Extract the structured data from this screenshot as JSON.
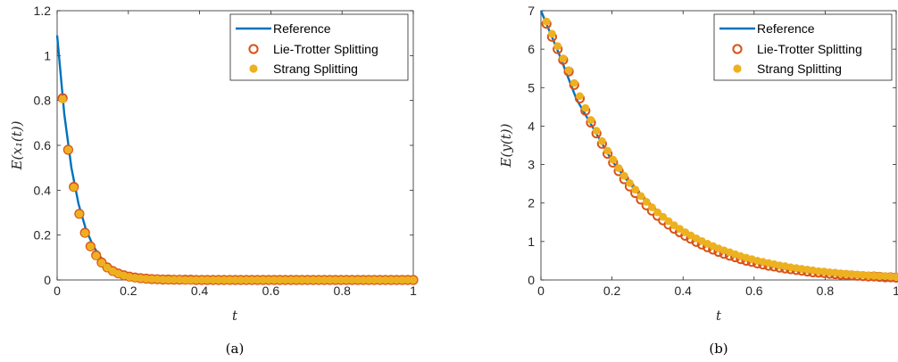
{
  "colors": {
    "reference": "#0072BD",
    "lie": "#D95319",
    "strang": "#EDB120"
  },
  "chart_data": [
    {
      "type": "line",
      "xlabel": "t",
      "ylabel": "E(x₁(t))",
      "xlim": [
        0,
        1
      ],
      "ylim": [
        0,
        1.2
      ],
      "xticks": [
        "0",
        "0.2",
        "0.4",
        "0.6",
        "0.8",
        "1"
      ],
      "yticks": [
        "0",
        "0.2",
        "0.4",
        "0.6",
        "0.8",
        "1",
        "1.2"
      ],
      "legend_position": "top-right",
      "caption": "(a)",
      "series": [
        {
          "name": "Reference",
          "style": "line",
          "x": [
            0,
            0.02,
            0.04,
            0.06,
            0.08,
            0.1,
            0.12,
            0.14,
            0.16,
            0.18,
            0.2,
            0.25,
            0.3,
            0.4,
            0.5,
            0.6,
            0.7,
            0.8,
            0.9,
            1.0
          ],
          "y": [
            1.09,
            0.74,
            0.5,
            0.34,
            0.23,
            0.155,
            0.105,
            0.07,
            0.047,
            0.032,
            0.022,
            0.009,
            0.004,
            0.001,
            0.0,
            0.0,
            0.0,
            0.0,
            0.0,
            0.0
          ]
        },
        {
          "name": "Lie-Trotter Splitting",
          "style": "circle",
          "x": [
            0.0156,
            0.0312,
            0.0469,
            0.0625,
            0.0781,
            0.0938,
            0.1094,
            0.125,
            0.1406,
            0.1563,
            0.1719,
            0.1875,
            0.2031,
            0.2188,
            0.2344,
            0.25,
            0.2656,
            0.2813,
            0.2969,
            0.3125,
            0.3281,
            0.3438,
            0.3594,
            0.375,
            0.3906,
            0.4063,
            0.4219,
            0.4375,
            0.4531,
            0.4688,
            0.4844,
            0.5,
            0.5156,
            0.5313,
            0.5469,
            0.5625,
            0.5781,
            0.5938,
            0.6094,
            0.625,
            0.6406,
            0.6563,
            0.6719,
            0.6875,
            0.7031,
            0.7188,
            0.7344,
            0.75,
            0.7656,
            0.7813,
            0.7969,
            0.8125,
            0.8281,
            0.8438,
            0.8594,
            0.875,
            0.8906,
            0.9063,
            0.9219,
            0.9375,
            0.9531,
            0.9688,
            0.9844,
            1.0
          ],
          "y": [
            0.81,
            0.58,
            0.415,
            0.295,
            0.21,
            0.15,
            0.11,
            0.078,
            0.056,
            0.04,
            0.029,
            0.021,
            0.015,
            0.011,
            0.008,
            0.006,
            0.004,
            0.003,
            0.002,
            0.002,
            0.001,
            0.001,
            0.001,
            0.001,
            0.0,
            0.0,
            0.0,
            0.0,
            0.0,
            0.0,
            0.0,
            0.0,
            0.0,
            0.0,
            0.0,
            0.0,
            0.0,
            0.0,
            0.0,
            0.0,
            0.0,
            0.0,
            0.0,
            0.0,
            0.0,
            0.0,
            0.0,
            0.0,
            0.0,
            0.0,
            0.0,
            0.0,
            0.0,
            0.0,
            0.0,
            0.0,
            0.0,
            0.0,
            0.0,
            0.0,
            0.0,
            0.0,
            0.0,
            0.0
          ]
        },
        {
          "name": "Strang Splitting",
          "style": "dot",
          "x": [
            0.0156,
            0.0312,
            0.0469,
            0.0625,
            0.0781,
            0.0938,
            0.1094,
            0.125,
            0.1406,
            0.1563,
            0.1719,
            0.1875,
            0.2031,
            0.2188,
            0.2344,
            0.25,
            0.2656,
            0.2813,
            0.2969,
            0.3125,
            0.3281,
            0.3438,
            0.3594,
            0.375,
            0.3906,
            0.4063,
            0.4219,
            0.4375,
            0.4531,
            0.4688,
            0.4844,
            0.5,
            0.5156,
            0.5313,
            0.5469,
            0.5625,
            0.5781,
            0.5938,
            0.6094,
            0.625,
            0.6406,
            0.6563,
            0.6719,
            0.6875,
            0.7031,
            0.7188,
            0.7344,
            0.75,
            0.7656,
            0.7813,
            0.7969,
            0.8125,
            0.8281,
            0.8438,
            0.8594,
            0.875,
            0.8906,
            0.9063,
            0.9219,
            0.9375,
            0.9531,
            0.9688,
            0.9844,
            1.0
          ],
          "y": [
            0.805,
            0.58,
            0.413,
            0.294,
            0.209,
            0.149,
            0.108,
            0.077,
            0.055,
            0.039,
            0.028,
            0.02,
            0.014,
            0.01,
            0.007,
            0.005,
            0.004,
            0.003,
            0.002,
            0.001,
            0.001,
            0.001,
            0.0,
            0.0,
            0.0,
            0.0,
            0.0,
            0.0,
            0.0,
            0.0,
            0.0,
            0.0,
            0.0,
            0.0,
            0.0,
            0.0,
            0.0,
            0.0,
            0.0,
            0.0,
            0.0,
            0.0,
            0.0,
            0.0,
            0.0,
            0.0,
            0.0,
            0.0,
            0.0,
            0.0,
            0.0,
            0.0,
            0.0,
            0.0,
            0.0,
            0.0,
            0.0,
            0.0,
            0.0,
            0.0,
            0.0,
            0.0,
            0.0,
            0.0
          ]
        }
      ]
    },
    {
      "type": "line",
      "xlabel": "t",
      "ylabel": "E(y(t))",
      "xlim": [
        0,
        1
      ],
      "ylim": [
        0,
        7
      ],
      "xticks": [
        "0",
        "0.2",
        "0.4",
        "0.6",
        "0.8",
        "1"
      ],
      "yticks": [
        "0",
        "1",
        "2",
        "3",
        "4",
        "5",
        "6",
        "7"
      ],
      "legend_position": "top-right",
      "caption": "(b)",
      "series": [
        {
          "name": "Reference",
          "style": "line",
          "x": [
            0,
            0.05,
            0.1,
            0.15,
            0.2,
            0.25,
            0.3,
            0.35,
            0.4,
            0.45,
            0.5,
            0.55,
            0.6,
            0.65,
            0.7,
            0.75,
            0.8,
            0.85,
            0.9,
            0.95,
            1.0
          ],
          "y": [
            7.0,
            5.9,
            4.7,
            3.9,
            3.1,
            2.5,
            2.0,
            1.6,
            1.25,
            0.98,
            0.76,
            0.6,
            0.46,
            0.36,
            0.28,
            0.21,
            0.16,
            0.12,
            0.09,
            0.06,
            0.04
          ]
        },
        {
          "name": "Lie-Trotter Splitting",
          "style": "circle",
          "x": [
            0.0156,
            0.0312,
            0.0469,
            0.0625,
            0.0781,
            0.0938,
            0.1094,
            0.125,
            0.1406,
            0.1563,
            0.1719,
            0.1875,
            0.2031,
            0.2188,
            0.2344,
            0.25,
            0.2656,
            0.2813,
            0.2969,
            0.3125,
            0.3281,
            0.3438,
            0.3594,
            0.375,
            0.3906,
            0.4063,
            0.4219,
            0.4375,
            0.4531,
            0.4688,
            0.4844,
            0.5,
            0.5156,
            0.5313,
            0.5469,
            0.5625,
            0.5781,
            0.5938,
            0.6094,
            0.625,
            0.6406,
            0.6563,
            0.6719,
            0.6875,
            0.7031,
            0.7188,
            0.7344,
            0.75,
            0.7656,
            0.7813,
            0.7969,
            0.8125,
            0.8281,
            0.8438,
            0.8594,
            0.875,
            0.8906,
            0.9063,
            0.9219,
            0.9375,
            0.9531,
            0.9688,
            0.9844,
            1.0
          ],
          "y": [
            6.66,
            6.32,
            6.0,
            5.72,
            5.42,
            5.07,
            4.72,
            4.4,
            4.09,
            3.81,
            3.54,
            3.28,
            3.05,
            2.83,
            2.62,
            2.43,
            2.26,
            2.09,
            1.94,
            1.8,
            1.67,
            1.55,
            1.44,
            1.33,
            1.24,
            1.15,
            1.07,
            0.99,
            0.92,
            0.85,
            0.79,
            0.73,
            0.68,
            0.63,
            0.59,
            0.54,
            0.5,
            0.47,
            0.43,
            0.4,
            0.37,
            0.35,
            0.32,
            0.3,
            0.28,
            0.26,
            0.24,
            0.22,
            0.2,
            0.19,
            0.18,
            0.16,
            0.15,
            0.14,
            0.13,
            0.12,
            0.11,
            0.1,
            0.09,
            0.09,
            0.08,
            0.07,
            0.07,
            0.06
          ]
        },
        {
          "name": "Strang Splitting",
          "style": "dot",
          "x": [
            0.0156,
            0.0312,
            0.0469,
            0.0625,
            0.0781,
            0.0938,
            0.1094,
            0.125,
            0.1406,
            0.1563,
            0.1719,
            0.1875,
            0.2031,
            0.2188,
            0.2344,
            0.25,
            0.2656,
            0.2813,
            0.2969,
            0.3125,
            0.3281,
            0.3438,
            0.3594,
            0.375,
            0.3906,
            0.4063,
            0.4219,
            0.4375,
            0.4531,
            0.4688,
            0.4844,
            0.5,
            0.5156,
            0.5313,
            0.5469,
            0.5625,
            0.5781,
            0.5938,
            0.6094,
            0.625,
            0.6406,
            0.6563,
            0.6719,
            0.6875,
            0.7031,
            0.7188,
            0.7344,
            0.75,
            0.7656,
            0.7813,
            0.7969,
            0.8125,
            0.8281,
            0.8438,
            0.8594,
            0.875,
            0.8906,
            0.9063,
            0.9219,
            0.9375,
            0.9531,
            0.9688,
            0.9844,
            1.0
          ],
          "y": [
            6.72,
            6.4,
            6.08,
            5.76,
            5.45,
            5.12,
            4.78,
            4.47,
            4.16,
            3.88,
            3.61,
            3.36,
            3.13,
            2.91,
            2.71,
            2.52,
            2.35,
            2.18,
            2.03,
            1.89,
            1.76,
            1.64,
            1.53,
            1.42,
            1.33,
            1.24,
            1.16,
            1.08,
            1.01,
            0.94,
            0.88,
            0.82,
            0.77,
            0.72,
            0.67,
            0.62,
            0.58,
            0.54,
            0.5,
            0.47,
            0.44,
            0.41,
            0.38,
            0.36,
            0.33,
            0.31,
            0.29,
            0.27,
            0.25,
            0.23,
            0.22,
            0.2,
            0.19,
            0.17,
            0.16,
            0.15,
            0.14,
            0.13,
            0.12,
            0.11,
            0.1,
            0.1,
            0.09,
            0.08
          ]
        }
      ]
    }
  ]
}
